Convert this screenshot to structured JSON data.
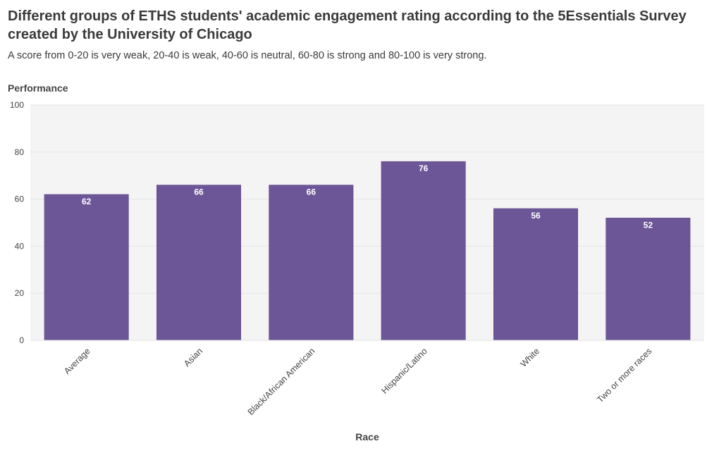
{
  "chart_data": {
    "type": "bar",
    "title": "Different groups of ETHS students' academic engagement rating according to the 5Essentials Survey created by the University of Chicago",
    "subtitle": "A score from 0-20 is very weak, 20-40 is weak, 40-60 is neutral, 60-80 is strong and 80-100 is very strong.",
    "xlabel": "Race",
    "ylabel": "Performance",
    "categories": [
      "Average",
      "Asian",
      "Black/African American",
      "Hispanic/Latino",
      "White",
      "Two or more races"
    ],
    "values": [
      62,
      66,
      66,
      76,
      56,
      52
    ],
    "ylim": [
      0,
      100
    ],
    "yticks": [
      0,
      20,
      40,
      60,
      80,
      100
    ],
    "grid": true,
    "colors": {
      "bar": "#6c5697",
      "plot_background": "#f4f4f4",
      "grid": "#e6e6e6",
      "label_text": "#ffffff"
    }
  }
}
